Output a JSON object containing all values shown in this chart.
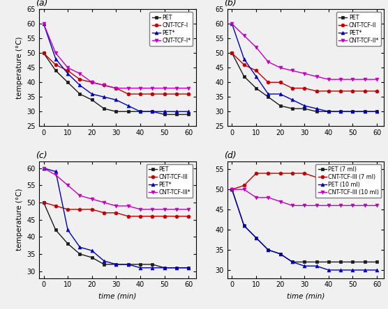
{
  "time": [
    0,
    5,
    10,
    15,
    20,
    25,
    30,
    35,
    40,
    45,
    50,
    55,
    60
  ],
  "panel_a": {
    "title": "(a)",
    "PET": [
      50,
      44,
      40,
      36,
      34,
      31,
      30,
      30,
      30,
      30,
      29,
      29,
      29
    ],
    "CNT-TCF-I": [
      50,
      46,
      44,
      41,
      40,
      39,
      38,
      36,
      36,
      36,
      36,
      36,
      36
    ],
    "PET*": [
      60,
      48,
      43,
      39,
      36,
      35,
      34,
      32,
      30,
      30,
      30,
      30,
      30
    ],
    "CNT-TCF-I*": [
      60,
      50,
      45,
      43,
      40,
      39,
      38,
      38,
      38,
      38,
      38,
      38,
      38
    ],
    "ylabel": "temperature (°C)",
    "ylim": [
      25,
      65
    ],
    "yticks": [
      25,
      30,
      35,
      40,
      45,
      50,
      55,
      60,
      65
    ],
    "legend": [
      "PET",
      "CNT-TCF-I",
      "PET*",
      "CNT-TCF-I*"
    ]
  },
  "panel_b": {
    "title": "(b)",
    "PET": [
      50,
      42,
      38,
      35,
      32,
      31,
      31,
      30,
      30,
      30,
      30,
      30,
      30
    ],
    "CNT-TCF-II": [
      50,
      46,
      44,
      40,
      40,
      38,
      38,
      37,
      37,
      37,
      37,
      37,
      37
    ],
    "PET*": [
      60,
      48,
      42,
      36,
      36,
      34,
      32,
      31,
      30,
      30,
      30,
      30,
      30
    ],
    "CNT-TCF-II*": [
      60,
      56,
      52,
      47,
      45,
      44,
      43,
      42,
      41,
      41,
      41,
      41,
      41
    ],
    "ylabel": "",
    "ylim": [
      25,
      65
    ],
    "yticks": [
      25,
      30,
      35,
      40,
      45,
      50,
      55,
      60,
      65
    ],
    "legend": [
      "PET",
      "CNT-TCF-II",
      "PET*",
      "CNT-TCF-II*"
    ]
  },
  "panel_c": {
    "title": "(c)",
    "PET": [
      50,
      42,
      38,
      35,
      34,
      32,
      32,
      32,
      32,
      32,
      31,
      31,
      31
    ],
    "CNT-TCF-III": [
      50,
      49,
      48,
      48,
      48,
      47,
      47,
      46,
      46,
      46,
      46,
      46,
      46
    ],
    "PET*": [
      60,
      59,
      42,
      37,
      36,
      33,
      32,
      32,
      31,
      31,
      31,
      31,
      31
    ],
    "CNT-TCF-III*": [
      60,
      58,
      55,
      52,
      51,
      50,
      49,
      49,
      48,
      48,
      48,
      48,
      48
    ],
    "ylabel": "temperature (°C)",
    "ylim": [
      28,
      62
    ],
    "yticks": [
      30,
      35,
      40,
      45,
      50,
      55,
      60
    ],
    "legend": [
      "PET",
      "CNT-TCF-III",
      "PET*",
      "CNT-TCF-III*"
    ]
  },
  "panel_d": {
    "title": "(d)",
    "PET_7ml": [
      50,
      41,
      38,
      35,
      34,
      32,
      32,
      32,
      32,
      32,
      32,
      32,
      32
    ],
    "CNT-TCF-III_7ml": [
      50,
      51,
      54,
      54,
      54,
      54,
      54,
      53,
      53,
      53,
      53,
      53,
      53
    ],
    "PET_10ml": [
      50,
      41,
      38,
      35,
      34,
      32,
      31,
      31,
      30,
      30,
      30,
      30,
      30
    ],
    "CNT-TCF-III_10ml": [
      50,
      50,
      48,
      48,
      47,
      46,
      46,
      46,
      46,
      46,
      46,
      46,
      46
    ],
    "ylabel": "",
    "ylim": [
      28,
      57
    ],
    "yticks": [
      30,
      35,
      40,
      45,
      50,
      55
    ],
    "legend": [
      "PET (7 ml)",
      "CNT-TCF-III (7 ml)",
      "PET (10 ml)",
      "CNT-TCF-III (10 ml)"
    ]
  },
  "colors": [
    "#1a1a1a",
    "#c00000",
    "#0000bb",
    "#c000c0"
  ],
  "markers": [
    "s",
    "o",
    "^",
    "v"
  ],
  "xticks": [
    0,
    10,
    20,
    30,
    40,
    50,
    60
  ],
  "xlabel": "time (min)",
  "bg_color": "#f0f0f0",
  "markersize": 3.5,
  "linewidth": 1.0
}
